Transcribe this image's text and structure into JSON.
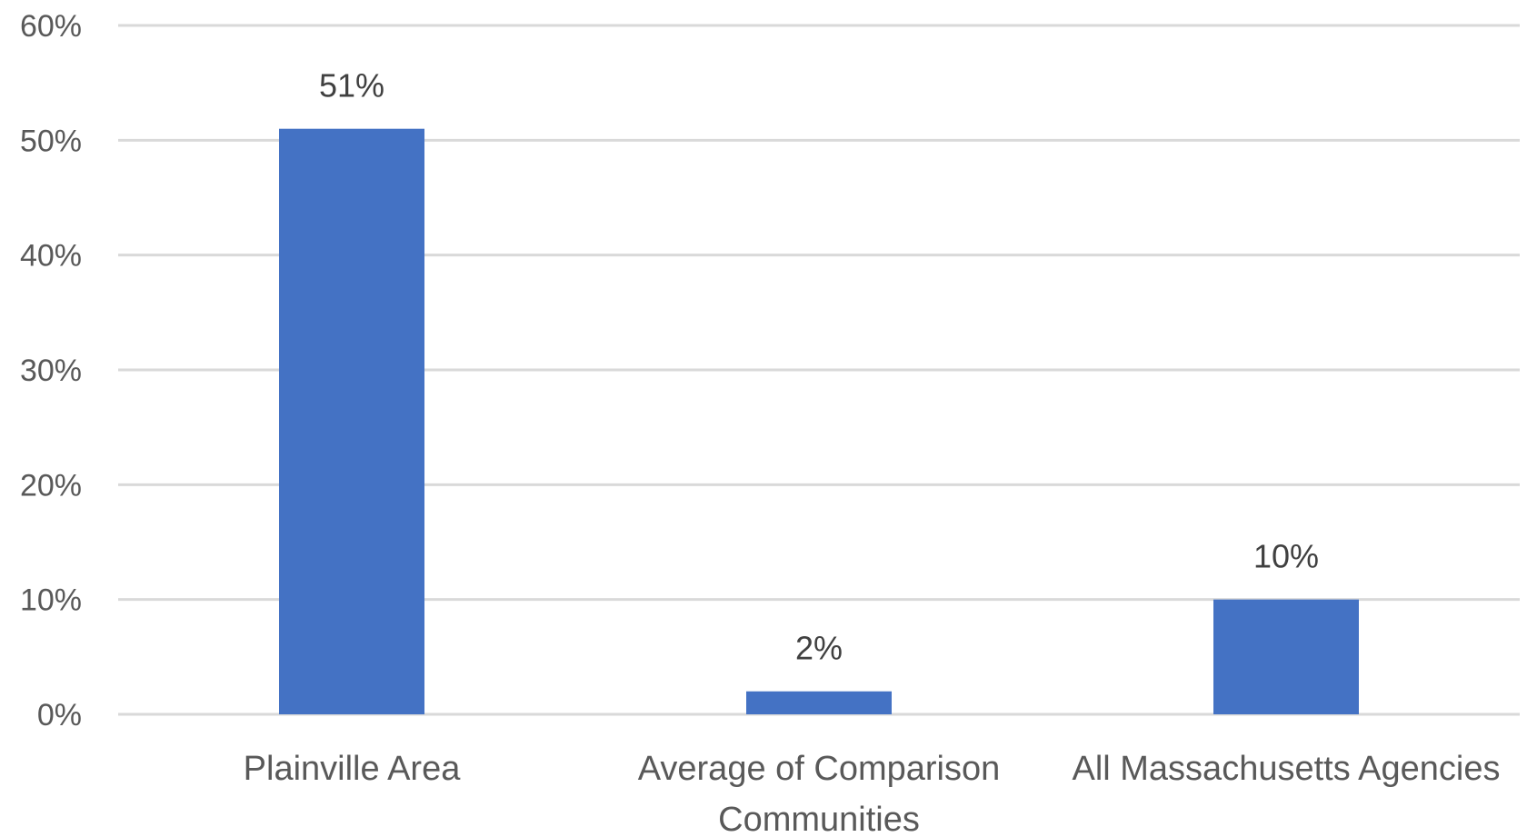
{
  "chart_data": {
    "type": "bar",
    "categories": [
      [
        "Plainville Area"
      ],
      [
        "Average of Comparison",
        "Communities"
      ],
      [
        "All Massachusetts Agencies"
      ]
    ],
    "values": [
      51,
      2,
      10
    ],
    "data_labels": [
      "51%",
      "2%",
      "10%"
    ],
    "y_ticks": [
      0,
      10,
      20,
      30,
      40,
      50,
      60
    ],
    "y_tick_labels": [
      "0%",
      "10%",
      "20%",
      "30%",
      "40%",
      "50%",
      "60%"
    ],
    "ylim": [
      0,
      60
    ],
    "grid": true,
    "legend": "none",
    "bar_color": "#4472C4"
  }
}
